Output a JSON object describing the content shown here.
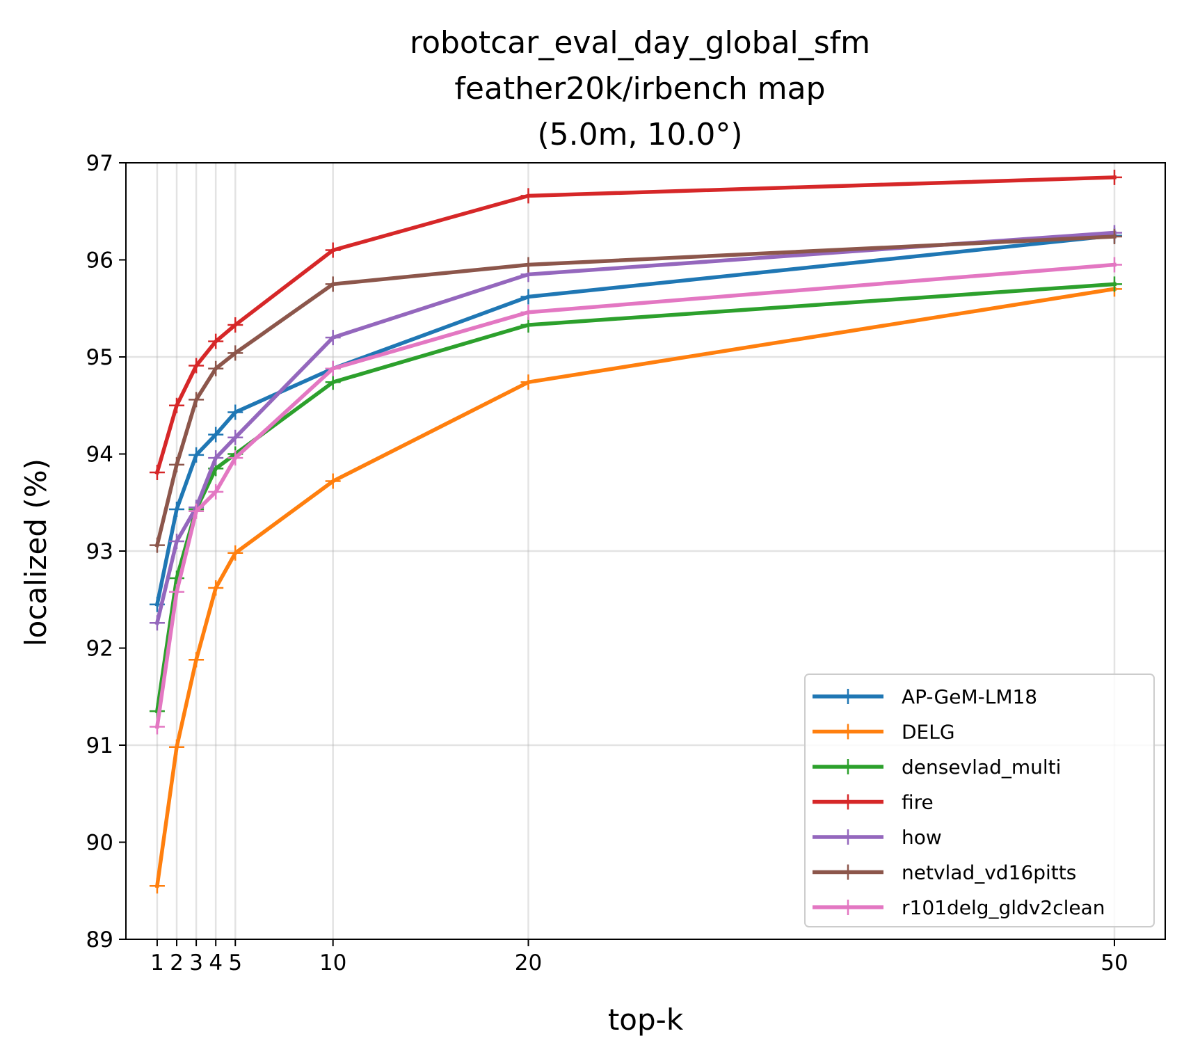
{
  "chart_data": {
    "type": "line",
    "title": [
      "robotcar_eval_day_global_sfm",
      "feather20k/irbench map",
      "(5.0m, 10.0°)"
    ],
    "xlabel": "top-k",
    "ylabel": "localized (%)",
    "x": [
      1,
      2,
      3,
      4,
      5,
      10,
      20,
      50
    ],
    "xticks": [
      1,
      2,
      3,
      4,
      5,
      10,
      20,
      50
    ],
    "xtick_labels": [
      "1",
      "2",
      "3",
      "4",
      "5",
      "10",
      "20",
      "50"
    ],
    "ylim": [
      89,
      97
    ],
    "yticks": [
      89,
      90,
      91,
      92,
      93,
      94,
      95,
      96,
      97
    ],
    "ytick_labels": [
      "89",
      "90",
      "91",
      "92",
      "93",
      "94",
      "95",
      "96",
      "97"
    ],
    "grid": true,
    "legend_position": "lower-right",
    "series": [
      {
        "name": "AP-GeM-LM18",
        "color": "#1f77b4",
        "values": [
          92.45,
          93.43,
          93.99,
          94.2,
          94.43,
          94.88,
          95.62,
          96.25
        ]
      },
      {
        "name": "DELG",
        "color": "#ff7f0e",
        "values": [
          89.55,
          90.98,
          91.88,
          92.62,
          92.98,
          93.72,
          94.74,
          95.7
        ]
      },
      {
        "name": "densevlad_multi",
        "color": "#2ca02c",
        "values": [
          91.35,
          92.72,
          93.43,
          93.85,
          94.0,
          94.74,
          95.33,
          95.75
        ]
      },
      {
        "name": "fire",
        "color": "#d62728",
        "values": [
          93.81,
          94.5,
          94.91,
          95.16,
          95.33,
          96.1,
          96.66,
          96.85
        ]
      },
      {
        "name": "how",
        "color": "#9467bd",
        "values": [
          92.26,
          93.1,
          93.45,
          93.96,
          94.17,
          95.2,
          95.85,
          96.28
        ]
      },
      {
        "name": "netvlad_vd16pitts",
        "color": "#8c564b",
        "values": [
          93.06,
          93.89,
          94.56,
          94.88,
          95.04,
          95.75,
          95.95,
          96.24
        ]
      },
      {
        "name": "r101delg_gldv2clean",
        "color": "#e377c2",
        "values": [
          91.19,
          92.58,
          93.41,
          93.61,
          93.96,
          94.88,
          95.46,
          95.95
        ]
      }
    ]
  }
}
